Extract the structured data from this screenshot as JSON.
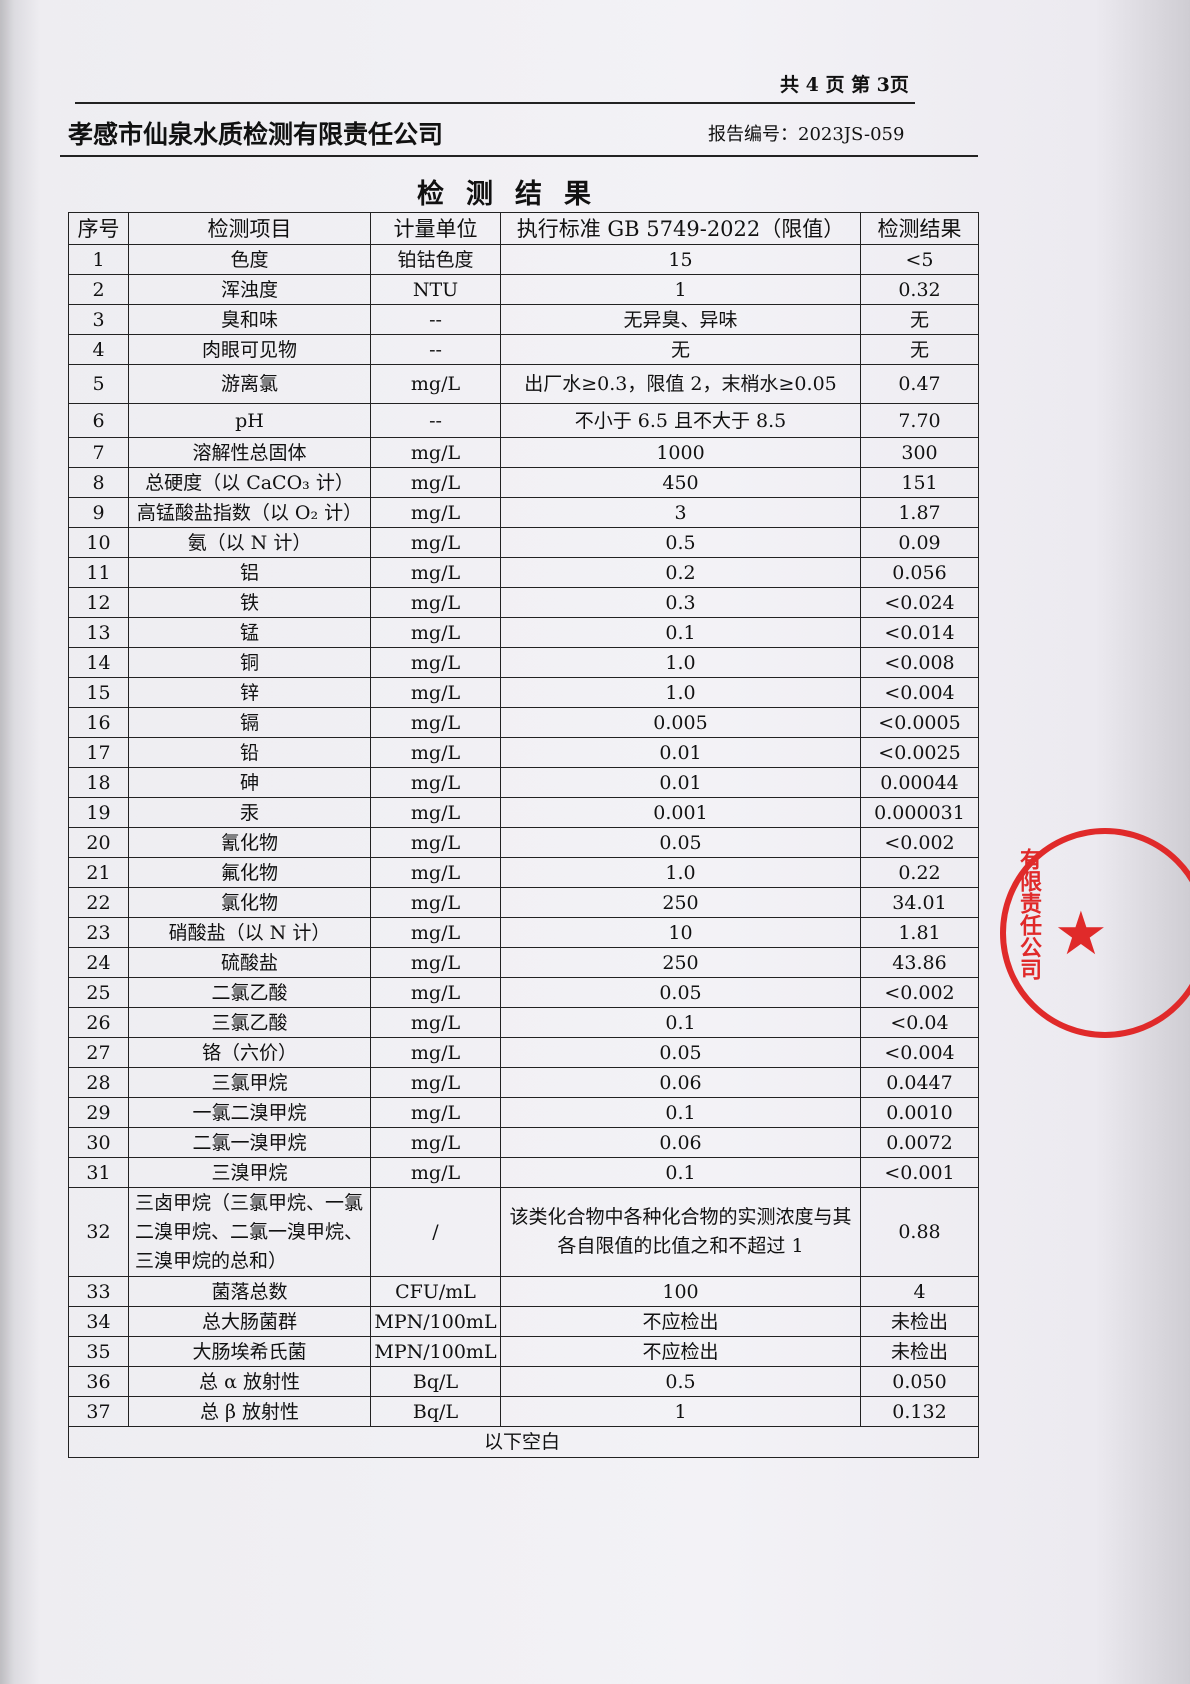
{
  "header": {
    "page_info": "共 4 页  第 3页",
    "company": "孝感市仙泉水质检测有限责任公司",
    "report_no": "报告编号：2023JS-059",
    "title": "检测结果"
  },
  "table": {
    "columns": [
      "序号",
      "检测项目",
      "计量单位",
      "执行标准 GB 5749-2022（限值）",
      "检测结果"
    ],
    "rows": [
      [
        "1",
        "色度",
        "铂钴色度",
        "15",
        "<5"
      ],
      [
        "2",
        "浑浊度",
        "NTU",
        "1",
        "0.32"
      ],
      [
        "3",
        "臭和味",
        "--",
        "无异臭、异味",
        "无"
      ],
      [
        "4",
        "肉眼可见物",
        "--",
        "无",
        "无"
      ],
      [
        "5",
        "游离氯",
        "mg/L",
        "出厂水≥0.3，限值 2，末梢水≥0.05",
        "0.47"
      ],
      [
        "6",
        "pH",
        "--",
        "不小于 6.5 且不大于 8.5",
        "7.70"
      ],
      [
        "7",
        "溶解性总固体",
        "mg/L",
        "1000",
        "300"
      ],
      [
        "8",
        "总硬度（以 CaCO₃ 计）",
        "mg/L",
        "450",
        "151"
      ],
      [
        "9",
        "高锰酸盐指数（以 O₂ 计）",
        "mg/L",
        "3",
        "1.87"
      ],
      [
        "10",
        "氨（以 N 计）",
        "mg/L",
        "0.5",
        "0.09"
      ],
      [
        "11",
        "铝",
        "mg/L",
        "0.2",
        "0.056"
      ],
      [
        "12",
        "铁",
        "mg/L",
        "0.3",
        "<0.024"
      ],
      [
        "13",
        "锰",
        "mg/L",
        "0.1",
        "<0.014"
      ],
      [
        "14",
        "铜",
        "mg/L",
        "1.0",
        "<0.008"
      ],
      [
        "15",
        "锌",
        "mg/L",
        "1.0",
        "<0.004"
      ],
      [
        "16",
        "镉",
        "mg/L",
        "0.005",
        "<0.0005"
      ],
      [
        "17",
        "铅",
        "mg/L",
        "0.01",
        "<0.0025"
      ],
      [
        "18",
        "砷",
        "mg/L",
        "0.01",
        "0.00044"
      ],
      [
        "19",
        "汞",
        "mg/L",
        "0.001",
        "0.000031"
      ],
      [
        "20",
        "氰化物",
        "mg/L",
        "0.05",
        "<0.002"
      ],
      [
        "21",
        "氟化物",
        "mg/L",
        "1.0",
        "0.22"
      ],
      [
        "22",
        "氯化物",
        "mg/L",
        "250",
        "34.01"
      ],
      [
        "23",
        "硝酸盐（以 N 计）",
        "mg/L",
        "10",
        "1.81"
      ],
      [
        "24",
        "硫酸盐",
        "mg/L",
        "250",
        "43.86"
      ],
      [
        "25",
        "二氯乙酸",
        "mg/L",
        "0.05",
        "<0.002"
      ],
      [
        "26",
        "三氯乙酸",
        "mg/L",
        "0.1",
        "<0.04"
      ],
      [
        "27",
        "铬（六价）",
        "mg/L",
        "0.05",
        "<0.004"
      ],
      [
        "28",
        "三氯甲烷",
        "mg/L",
        "0.06",
        "0.0447"
      ],
      [
        "29",
        "一氯二溴甲烷",
        "mg/L",
        "0.1",
        "0.0010"
      ],
      [
        "30",
        "二氯一溴甲烷",
        "mg/L",
        "0.06",
        "0.0072"
      ],
      [
        "31",
        "三溴甲烷",
        "mg/L",
        "0.1",
        "<0.001"
      ],
      [
        "32",
        "三卤甲烷（三氯甲烷、一氯二溴甲烷、二氯一溴甲烷、三溴甲烷的总和）",
        "/",
        "该类化合物中各种化合物的实测浓度与其各自限值的比值之和不超过 1",
        "0.88"
      ],
      [
        "33",
        "菌落总数",
        "CFU/mL",
        "100",
        "4"
      ],
      [
        "34",
        "总大肠菌群",
        "MPN/100mL",
        "不应检出",
        "未检出"
      ],
      [
        "35",
        "大肠埃希氏菌",
        "MPN/100mL",
        "不应检出",
        "未检出"
      ],
      [
        "36",
        "总 α 放射性",
        "Bq/L",
        "0.5",
        "0.050"
      ],
      [
        "37",
        "总 β 放射性",
        "Bq/L",
        "1",
        "0.132"
      ]
    ],
    "footer": "以下空白"
  },
  "stamp": {
    "text": "…有限责任公司 检测专用章",
    "color": "#e02a2a"
  }
}
